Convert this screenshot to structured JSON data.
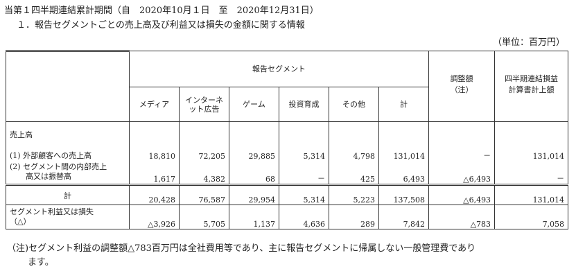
{
  "header": {
    "period": "当第１四半期連結累計期間（自　2020年10月１日　至　2020年12月31日）",
    "section_title": "１．報告セグメントごとの売上高及び利益又は損失の金額に関する情報",
    "unit": "（単位：百万円）"
  },
  "table": {
    "group_header": "報告セグメント",
    "columns": [
      "メディア",
      "インターネット広告",
      "ゲーム",
      "投資育成",
      "その他",
      "計"
    ],
    "adjustment_header_1": "調整額",
    "adjustment_header_2": "（注）",
    "consolidated_header_1": "四半期連結損益",
    "consolidated_header_2": "計算書計上額",
    "rows": {
      "sales_heading": "売上高",
      "external": {
        "label": "(1) 外部顧客への売上高",
        "values": [
          "18,810",
          "72,205",
          "29,885",
          "5,314",
          "4,798",
          "131,014",
          "－",
          "131,014"
        ]
      },
      "intersegment": {
        "label_1": "(2) セグメント間の内部売上",
        "label_2": "高又は振替高",
        "values": [
          "1,617",
          "4,382",
          "68",
          "－",
          "425",
          "6,493",
          "△6,493",
          "－"
        ]
      },
      "total": {
        "label": "計",
        "values": [
          "20,428",
          "76,587",
          "29,954",
          "5,314",
          "5,223",
          "137,508",
          "△6,493",
          "131,014"
        ]
      },
      "profit": {
        "label_1": "セグメント利益又は損失",
        "label_2": "（△）",
        "values": [
          "△3,926",
          "5,705",
          "1,137",
          "4,636",
          "289",
          "7,842",
          "△783",
          "7,058"
        ]
      }
    }
  },
  "note": {
    "line1": "（注)セグメント利益の調整額△783百万円は全社費用等であり、主に報告セグメントに帰属しない一般管理費であり",
    "line2": "ます。"
  }
}
